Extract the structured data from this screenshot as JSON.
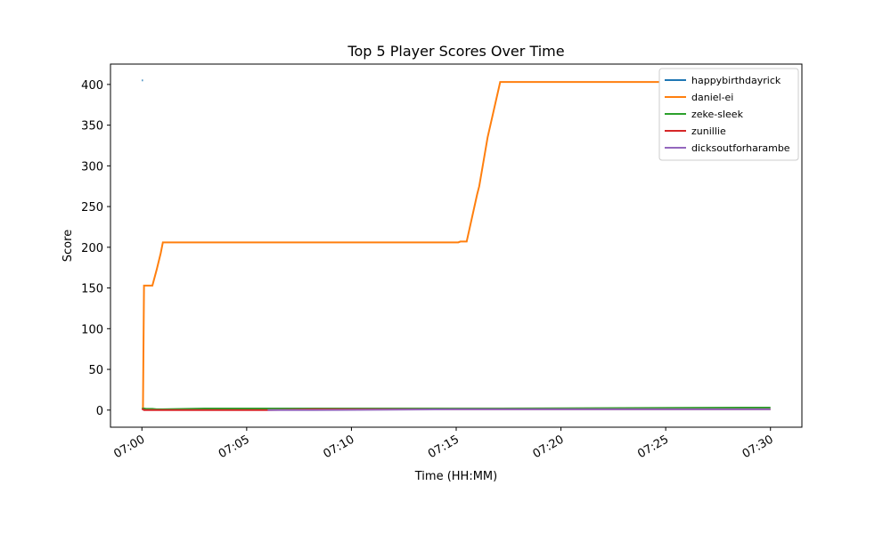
{
  "chart_data": {
    "type": "line",
    "title": "Top 5 Player Scores Over Time",
    "x_label": "Time (HH:MM)",
    "y_label": "Score",
    "x": [
      0,
      0.05,
      0.1,
      0.2,
      0.5,
      0.7,
      0.9,
      1.0,
      3.0,
      6.0,
      8.2,
      15.1,
      15.2,
      15.5,
      16.0,
      16.1,
      16.5,
      17.1,
      28.8,
      30.0
    ],
    "series": [
      {
        "name": "happybirthdayrick",
        "color": "#1f77b4",
        "values": [
          405,
          405,
          null,
          null,
          null,
          null,
          null,
          null,
          null,
          null,
          null,
          null,
          null,
          null,
          null,
          null,
          null,
          null,
          null,
          null
        ]
      },
      {
        "name": "daniel-ei",
        "color": "#ff7f0e",
        "values": [
          2,
          2,
          153,
          153,
          153,
          172,
          193,
          206,
          206,
          206,
          206,
          206,
          207,
          207,
          265,
          275,
          335,
          403,
          403,
          403
        ]
      },
      {
        "name": "zeke-sleek",
        "color": "#2ca02c",
        "values": [
          2,
          2,
          2,
          1.5,
          1.5,
          1,
          1,
          1,
          2,
          2,
          2,
          2,
          2,
          2,
          2,
          2,
          2,
          2,
          3,
          3
        ]
      },
      {
        "name": "zunillie",
        "color": "#d62728",
        "values": [
          1,
          1,
          0,
          0,
          0,
          0,
          0,
          0,
          0,
          0,
          1,
          1,
          1,
          1,
          1,
          1,
          1,
          1,
          1,
          1
        ]
      },
      {
        "name": "dicksoutforharambe",
        "color": "#9467bd",
        "values": [
          null,
          null,
          null,
          null,
          null,
          null,
          null,
          null,
          null,
          0,
          0,
          1,
          1,
          1,
          1,
          1,
          1,
          1,
          1,
          1
        ]
      }
    ],
    "xlim": [
      -1.5,
      31.5
    ],
    "ylim": [
      -21,
      425
    ],
    "xticks": [
      {
        "value": 0,
        "label": "07:00"
      },
      {
        "value": 5,
        "label": "07:05"
      },
      {
        "value": 10,
        "label": "07:10"
      },
      {
        "value": 15,
        "label": "07:15"
      },
      {
        "value": 20,
        "label": "07:20"
      },
      {
        "value": 25,
        "label": "07:25"
      },
      {
        "value": 30,
        "label": "07:30"
      }
    ],
    "yticks": [
      0,
      50,
      100,
      150,
      200,
      250,
      300,
      350,
      400
    ],
    "legend": "upper right",
    "grid": false
  }
}
